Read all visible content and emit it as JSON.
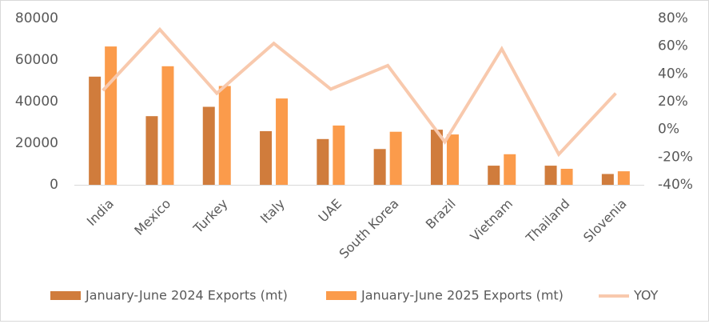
{
  "chart_data": {
    "type": "bar",
    "categories": [
      "India",
      "Mexico",
      "Turkey",
      "Italy",
      "UAE",
      "South Korea",
      "Brazil",
      "Vietnam",
      "Thailand",
      "Slovenia"
    ],
    "series": [
      {
        "name": "January-June 2024 Exports (mt)",
        "type": "bar",
        "axis": "left",
        "color": "#d07c3c",
        "values": [
          52000,
          33000,
          37500,
          25800,
          22000,
          17200,
          26500,
          9200,
          9200,
          5200
        ]
      },
      {
        "name": "January-June 2025 Exports (mt)",
        "type": "bar",
        "axis": "left",
        "color": "#fb9b4b",
        "values": [
          66500,
          57000,
          47500,
          41500,
          28500,
          25500,
          24200,
          14700,
          7700,
          6500
        ]
      },
      {
        "name": "YOY",
        "type": "line",
        "axis": "right",
        "color": "#f8c9ad",
        "values": [
          0.28,
          0.72,
          0.26,
          0.62,
          0.29,
          0.46,
          -0.09,
          0.58,
          -0.18,
          0.26
        ]
      }
    ],
    "left_axis": {
      "min": 0,
      "max": 80000,
      "ticks": [
        0,
        20000,
        40000,
        60000,
        80000
      ],
      "tick_labels": [
        "0",
        "20000",
        "40000",
        "60000",
        "80000"
      ]
    },
    "right_axis": {
      "min": -0.4,
      "max": 0.8,
      "ticks": [
        -0.4,
        -0.2,
        0,
        0.2,
        0.4,
        0.6,
        0.8
      ],
      "tick_labels": [
        "-40%",
        "-20%",
        "0%",
        "20%",
        "40%",
        "60%",
        "80%"
      ]
    },
    "title": "",
    "xlabel": "",
    "ylabel": "",
    "grid": false,
    "legend_position": "bottom"
  }
}
